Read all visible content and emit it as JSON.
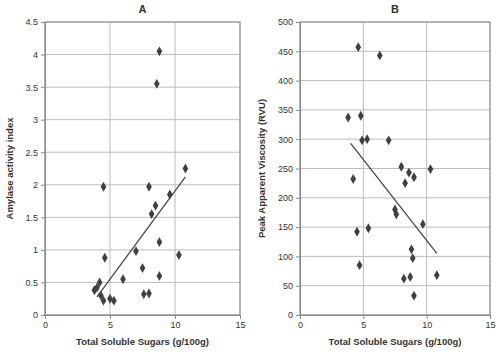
{
  "chart_data": [
    {
      "type": "scatter",
      "title": "A",
      "x_label": "Total Soluble Sugars (g/100g)",
      "y_label": "Amylase activity index",
      "xlim": [
        0,
        15
      ],
      "ylim": [
        0,
        4.5
      ],
      "xticks": [
        0,
        5,
        10,
        15
      ],
      "yticks": [
        0,
        0.5,
        1,
        1.5,
        2,
        2.5,
        3,
        3.5,
        4,
        4.5
      ],
      "grid": true,
      "series": [
        {
          "type": "scatter",
          "marker": "diamond",
          "color": "#404040",
          "x": [
            3.8,
            4.0,
            4.2,
            4.3,
            4.5,
            4.6,
            4.5,
            5.0,
            5.3,
            6.0,
            7.0,
            7.5,
            7.6,
            8.0,
            8.0,
            8.2,
            8.5,
            8.6,
            8.8,
            8.8,
            8.8,
            9.6,
            10.3,
            10.8
          ],
          "values": [
            0.38,
            0.42,
            0.5,
            0.3,
            1.97,
            0.88,
            0.22,
            0.25,
            0.22,
            0.55,
            0.98,
            0.72,
            0.32,
            0.33,
            1.97,
            1.55,
            1.68,
            3.55,
            4.05,
            1.12,
            0.6,
            1.85,
            0.92,
            2.25
          ]
        },
        {
          "type": "line",
          "line_style": "solid",
          "color": "#404040",
          "x": [
            4.0,
            10.8
          ],
          "values": [
            0.28,
            2.12
          ]
        }
      ]
    },
    {
      "type": "scatter",
      "title": "B",
      "x_label": "Total Soluble Sugars (g/100g)",
      "y_label": "Peak Apparent Viscosity (RVU)",
      "xlim": [
        0,
        15
      ],
      "ylim": [
        0,
        500
      ],
      "xticks": [
        0,
        5,
        10,
        15
      ],
      "yticks": [
        0,
        50,
        100,
        150,
        200,
        250,
        300,
        350,
        400,
        450,
        500
      ],
      "grid": true,
      "series": [
        {
          "type": "scatter",
          "marker": "diamond",
          "color": "#404040",
          "x": [
            3.8,
            4.2,
            4.5,
            4.6,
            4.7,
            4.8,
            4.9,
            5.3,
            5.4,
            6.3,
            7.0,
            7.5,
            7.6,
            8.0,
            8.2,
            8.3,
            8.6,
            8.7,
            8.8,
            8.9,
            9.0,
            9.0,
            9.7,
            10.3,
            10.8
          ],
          "values": [
            337,
            232,
            142,
            457,
            85,
            340,
            298,
            300,
            148,
            443,
            298,
            180,
            172,
            253,
            62,
            225,
            243,
            65,
            112,
            97,
            235,
            33,
            155,
            249,
            68
          ]
        },
        {
          "type": "line",
          "line_style": "solid",
          "color": "#404040",
          "x": [
            4.0,
            10.8
          ],
          "values": [
            293,
            105
          ]
        }
      ]
    }
  ]
}
